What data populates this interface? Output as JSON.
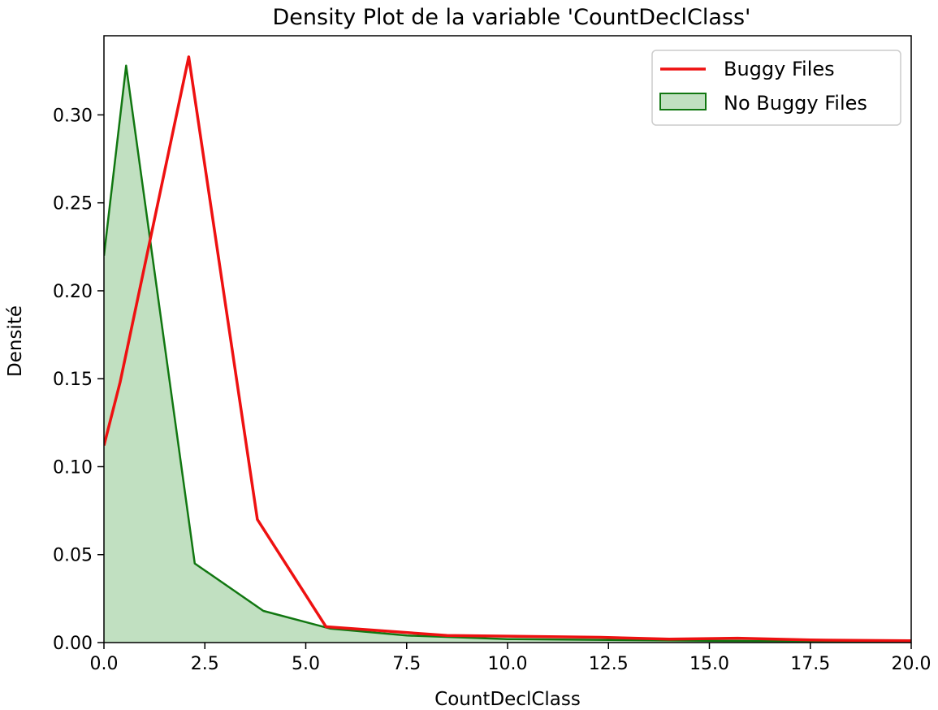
{
  "chart_data": {
    "type": "area",
    "title": "Density Plot de la variable 'CountDeclClass'",
    "xlabel": "CountDeclClass",
    "ylabel": "Densité",
    "xlim": [
      0,
      20
    ],
    "ylim": [
      0,
      0.345
    ],
    "x_ticks": [
      0,
      2.5,
      5,
      7.5,
      10,
      12.5,
      15,
      17.5,
      20
    ],
    "x_tick_labels": [
      "0.0",
      "2.5",
      "5.0",
      "7.5",
      "10.0",
      "12.5",
      "15.0",
      "17.5",
      "20.0"
    ],
    "y_ticks": [
      0,
      0.05,
      0.1,
      0.15,
      0.2,
      0.25,
      0.3
    ],
    "y_tick_labels": [
      "0.00",
      "0.05",
      "0.10",
      "0.15",
      "0.20",
      "0.25",
      "0.30"
    ],
    "grid": false,
    "legend_position": "top-right",
    "series": [
      {
        "name": "Buggy Files",
        "style": "line",
        "color": "#ee1111",
        "x": [
          0,
          0.4,
          2.1,
          3.8,
          5.5,
          8.5,
          12.3,
          14,
          15.7,
          17.5,
          20
        ],
        "y": [
          0.112,
          0.148,
          0.333,
          0.07,
          0.009,
          0.004,
          0.003,
          0.002,
          0.0025,
          0.0015,
          0.001
        ]
      },
      {
        "name": "No Buggy Files",
        "style": "filled-area",
        "color": "#117711",
        "fill": "#c1e0c1",
        "x": [
          0,
          0.55,
          2.25,
          3.95,
          5.6,
          7.5,
          10,
          12.5,
          15,
          17.5,
          20
        ],
        "y": [
          0.22,
          0.328,
          0.045,
          0.018,
          0.008,
          0.004,
          0.002,
          0.0015,
          0.001,
          0.0008,
          0.0005
        ]
      }
    ]
  }
}
